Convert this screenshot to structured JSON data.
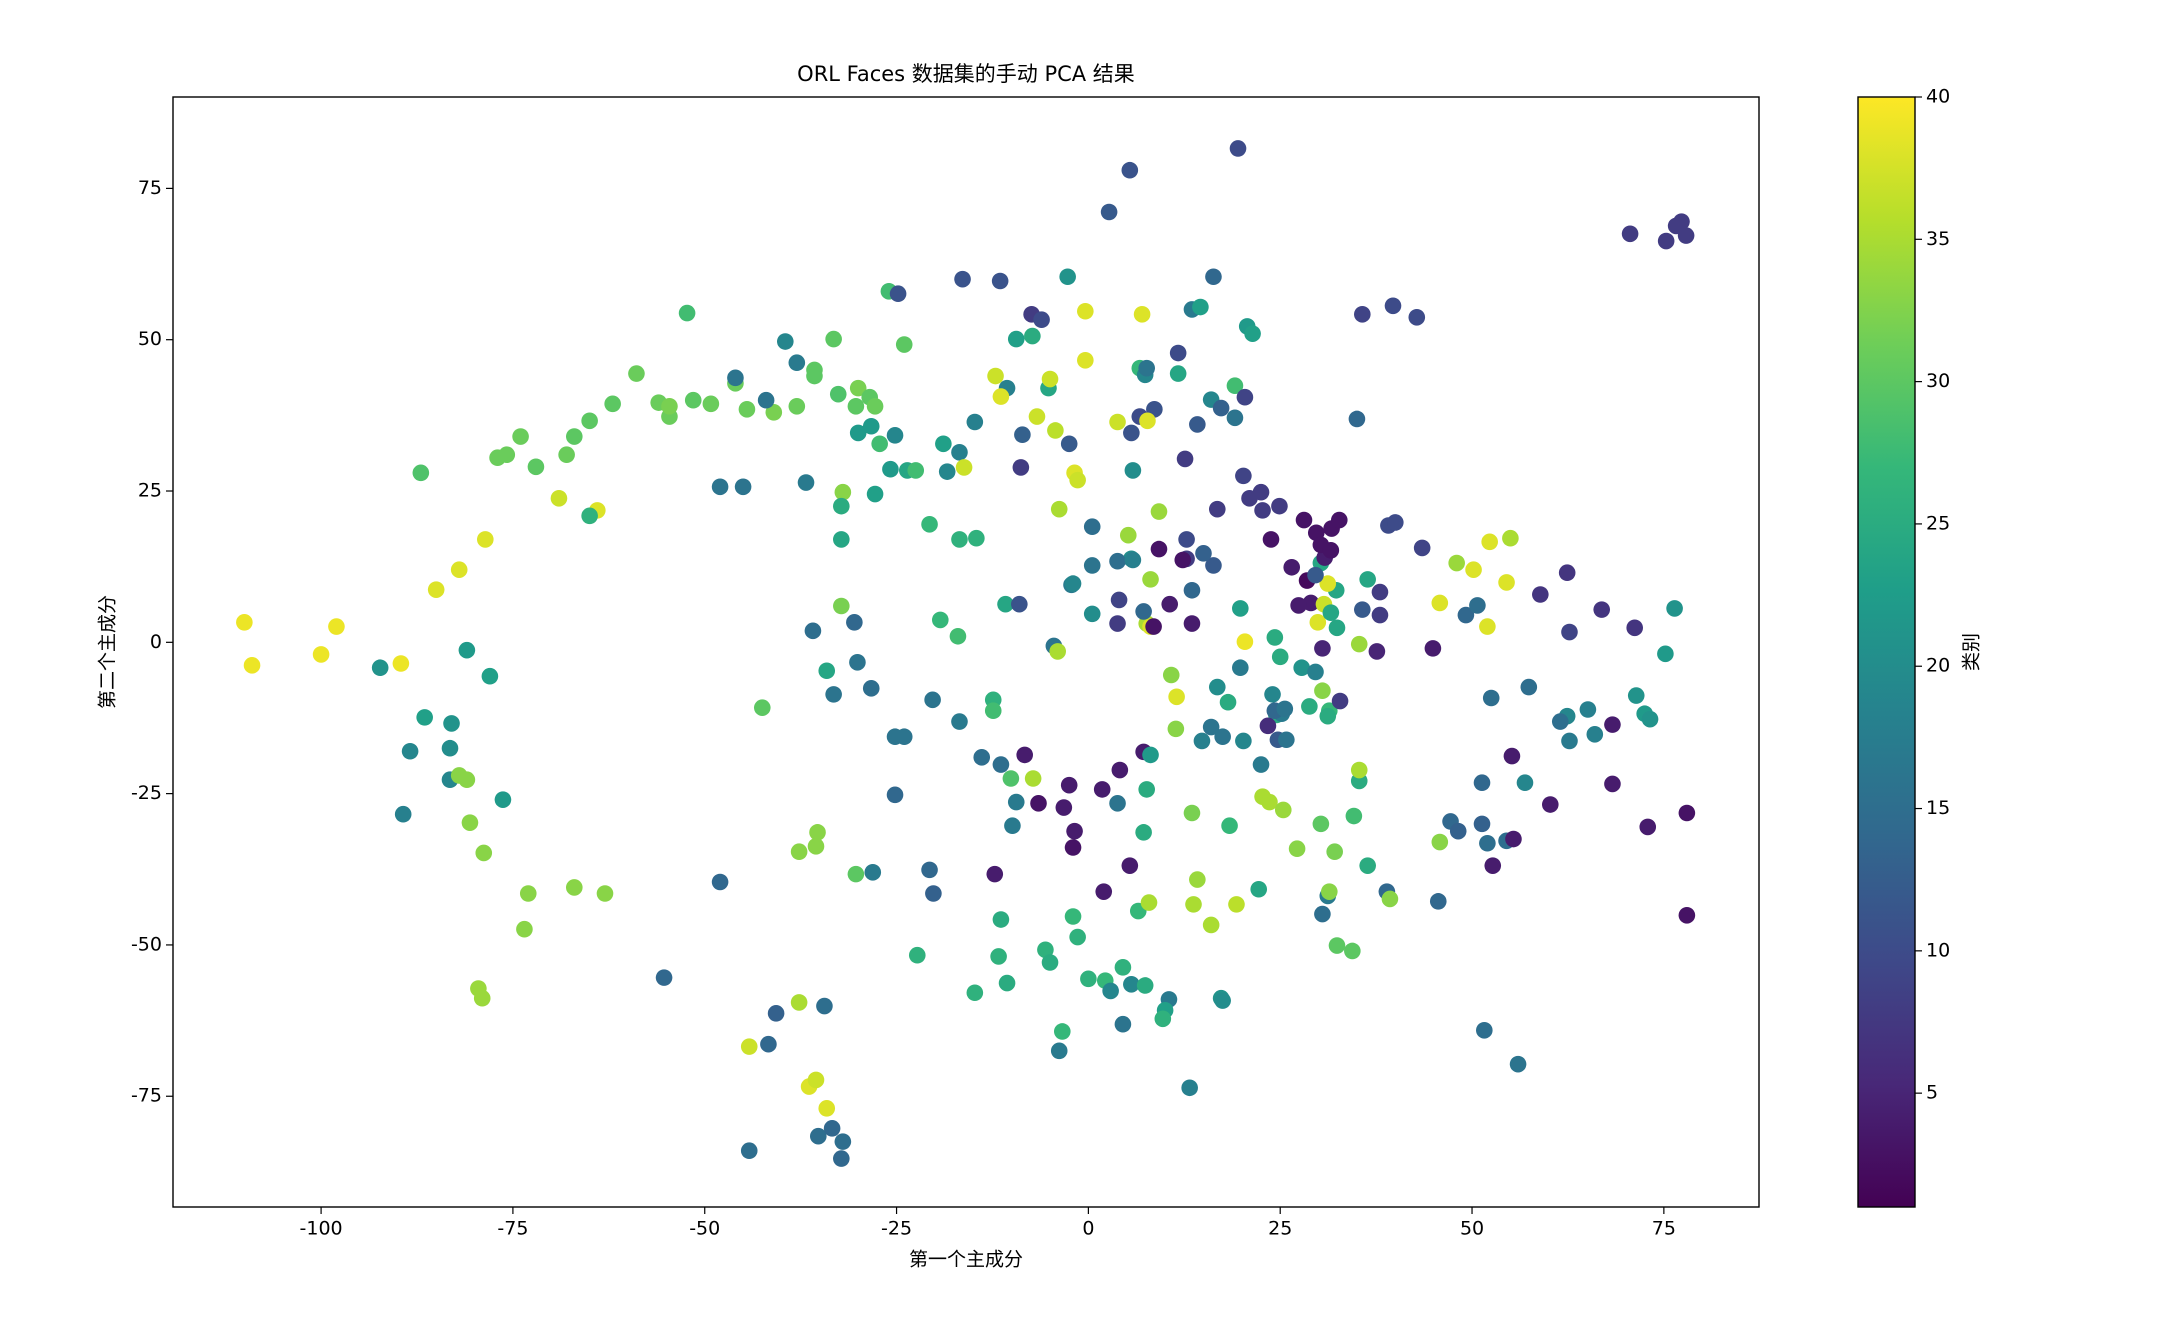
{
  "chart_data": {
    "type": "scatter",
    "title": "ORL Faces 数据集的手动 PCA 结果",
    "x_label": "第一个主成分",
    "y_label": "第二个主成分",
    "colorbar_label": "类别",
    "colormap": "viridis",
    "colorbar_lim": [
      1,
      40
    ],
    "colorbar_ticks": [
      5,
      10,
      15,
      20,
      25,
      30,
      35,
      40
    ],
    "xlim": [
      -119.3,
      87.4
    ],
    "ylim": [
      -93.3,
      90.1
    ],
    "xticks": [
      -100,
      -75,
      -50,
      -25,
      0,
      25,
      50,
      75
    ],
    "yticks": [
      -75,
      -50,
      -25,
      0,
      25,
      50,
      75
    ],
    "grid": false,
    "x": [
      -110,
      -109,
      -98,
      -100,
      -89.6,
      -92.3,
      -87,
      -86.5,
      -88.4,
      -89.3,
      -83,
      -83.2,
      -83.2,
      -81,
      -78,
      -82,
      -81,
      -80.6,
      -78.8,
      -76.3,
      -73,
      -73.5,
      -79.5,
      -79,
      -67,
      -63,
      -85,
      -82,
      -78.6,
      -69,
      -64,
      -65,
      -77,
      -75.8,
      -74,
      -72,
      -68,
      -67,
      -65,
      -62,
      -58.9,
      -56,
      -54.6,
      -54.6,
      -51.5,
      -49.2,
      -52.3,
      -46,
      -46,
      -48,
      -45,
      -44.5,
      -41,
      -42,
      -39.5,
      -38,
      -38,
      -35.7,
      -35.7,
      -33.2,
      -36.8,
      -32.6,
      -30.3,
      -30,
      -28.5,
      -27.8,
      -30,
      -28.3,
      -27.2,
      -26,
      -24.8,
      -25.2,
      -25.8,
      -27.8,
      -24,
      -23.6,
      -22.5,
      -32,
      -32.2,
      -32.2,
      -32.2,
      -30.5,
      -35.9,
      -34.1,
      -33.2,
      -30.1,
      -28.3,
      -42.5,
      -25.2,
      -24,
      -25.2,
      -35.3,
      -35.5,
      -37.7,
      -30.3,
      -28.1,
      -20.7,
      -19.3,
      -17,
      -16.8,
      -14.6,
      -20.3,
      -16.8,
      -20.7,
      -20.2,
      -22.3,
      -14.8,
      -48,
      -55.3,
      -40.7,
      -41.7,
      -44.2,
      -37.7,
      -34.4,
      -36.4,
      -35.5,
      -34.1,
      -35.2,
      -33.4,
      -32,
      -32.2,
      -44.2,
      -18.9,
      -18.4,
      -16.8,
      -16.2,
      -16.4,
      -11.5,
      -12.1,
      -10.6,
      -11.4,
      -9.4,
      -7.3,
      -7.4,
      -6.1,
      -14.8,
      -8.6,
      -8.8,
      -6.7,
      -5.2,
      -5,
      -2.7,
      -0.4,
      -0.4,
      -4.3,
      -2.5,
      -1.8,
      -1.4,
      -10.8,
      -9,
      -12.4,
      -12.4,
      -13.9,
      -11.4,
      -8.3,
      -10.1,
      -7.2,
      -9.4,
      -9.9,
      -6.5,
      -2.5,
      -3.2,
      -1.8,
      -2,
      -4.5,
      -4,
      -3.8,
      -2.2,
      -12.2,
      -11.4,
      -11.7,
      -10.6,
      -5.6,
      -5,
      -2,
      -1.4,
      -3.4,
      -3.8,
      0,
      2.2,
      2.9,
      4.5,
      4.5,
      5.6,
      7.4,
      6.5,
      7.9,
      10.5,
      10,
      9.7,
      13.2,
      17.3,
      17.5,
      2,
      5.4,
      4.1,
      7.2,
      8.1,
      1.8,
      3.8,
      7.6,
      7.2,
      14.2,
      13.7,
      16,
      19.3,
      22.2,
      18.4,
      13.5,
      11.4,
      11.5,
      10.8,
      14.8,
      16.8,
      16,
      17.5,
      18.2,
      19.8,
      20.2,
      22.5,
      20.4,
      19.8,
      24.3,
      25,
      24,
      24.5,
      25.2,
      24.3,
      23.4,
      25.6,
      24.7,
      25.8,
      22.7,
      23.6,
      25.4,
      27.2,
      30.3,
      32.1,
      34.6,
      36.4,
      30.5,
      31.2,
      31.4,
      32.4,
      34.4,
      38.9,
      39.3,
      27.8,
      30.5,
      28.8,
      31.4,
      31.2,
      32.8,
      35.3,
      35.3,
      29.6,
      30.5,
      32.4,
      35.3,
      37.6,
      35.7,
      38,
      38,
      36.4,
      29,
      27.4,
      29.9,
      30.7,
      31.6,
      32.3,
      31.2,
      30.3,
      30.8,
      28.5,
      29.6,
      26.5,
      28.1,
      29.7,
      30.3,
      31.7,
      31.6,
      32.7,
      22.5,
      22.7,
      24.9,
      23.8,
      21,
      20.2,
      16.8,
      16.3,
      15,
      12.8,
      12.8,
      9.2,
      12.3,
      10.6,
      13.5,
      13.5,
      12.6,
      14.2,
      11.7,
      11.7,
      13.5,
      14.6,
      16.3,
      16,
      17.3,
      19.1,
      19.1,
      20.7,
      21.4,
      20.4,
      19.5,
      5.4,
      2.7,
      6.7,
      7.4,
      7.6,
      7,
      8.6,
      6.7,
      7.7,
      3.8,
      5.6,
      5.8,
      9.2,
      5.2,
      8.1,
      7.6,
      8.1,
      7.2,
      5.6,
      4,
      3.8,
      8.5,
      0.5,
      0.5,
      0.5,
      3.8,
      5.8,
      -2,
      35.7,
      39.7,
      42.8,
      35,
      39.1,
      40,
      43.5,
      44.9,
      45.8,
      48,
      50.2,
      52.3,
      55,
      54.5,
      52,
      49.2,
      50.7,
      52.5,
      58.9,
      62.4,
      62.7,
      66.9,
      71.2,
      76.4,
      75.2,
      71.4,
      72.5,
      73.2,
      68.3,
      66,
      65.1,
      62.4,
      61.5,
      62.7,
      57.4,
      55.2,
      56.9,
      51.3,
      54.5,
      55.4,
      52,
      52.7,
      51.3,
      47.2,
      48.2,
      45.8,
      45.6,
      60.2,
      68.3,
      72.9,
      78,
      78,
      51.6,
      56,
      70.6,
      75.3,
      76.6,
      77.3,
      77.9
    ],
    "values": [
      3.3,
      -3.8,
      2.6,
      -2,
      -3.5,
      -4.2,
      28,
      -12.4,
      -18,
      -28.4,
      -13.4,
      -17.5,
      -22.7,
      -1.3,
      -5.6,
      -22,
      -22.7,
      -29.8,
      -34.8,
      -26,
      -41.5,
      -47.4,
      -57.2,
      -58.8,
      -40.5,
      -41.5,
      8.7,
      12,
      17,
      23.8,
      21.8,
      20.9,
      30.5,
      31,
      34,
      29,
      31,
      34,
      36.6,
      39.4,
      44.4,
      39.6,
      37.3,
      39,
      40,
      39.4,
      54.4,
      42.8,
      43.7,
      25.7,
      25.7,
      38.5,
      38,
      40,
      49.7,
      46.2,
      39,
      45,
      44,
      50.1,
      26.4,
      41,
      39,
      42,
      40.5,
      39,
      34.6,
      35.7,
      32.8,
      58,
      57.6,
      34.2,
      28.6,
      24.5,
      49.2,
      28.4,
      28.4,
      24.8,
      22.5,
      17,
      6,
      3.3,
      1.9,
      -4.7,
      -8.6,
      -3.3,
      -7.6,
      -10.8,
      -15.6,
      -15.6,
      -25.2,
      -31.4,
      -33.7,
      -34.6,
      -38.3,
      -38,
      19.5,
      3.7,
      1,
      17,
      17.2,
      -9.5,
      -13.1,
      -37.6,
      -41.5,
      -51.7,
      -57.9,
      -39.6,
      -55.4,
      -61.3,
      -66.4,
      -66.8,
      -59.5,
      -60.1,
      -73.4,
      -72.3,
      -77,
      -81.6,
      -80.3,
      -82.5,
      -85.3,
      -84,
      32.8,
      28.2,
      31.4,
      28.9,
      60,
      59.7,
      44,
      42,
      40.6,
      50.1,
      50.6,
      54.2,
      53.3,
      36.4,
      34.3,
      28.9,
      37.3,
      42,
      43.5,
      60.4,
      54.7,
      46.6,
      35,
      32.8,
      28,
      26.8,
      6.3,
      6.3,
      -9.5,
      -11.3,
      -19,
      -20.2,
      -18.6,
      -22.5,
      -22.5,
      -26.4,
      -30.3,
      -26.6,
      -23.6,
      -27.3,
      -31.2,
      -33.9,
      -0.6,
      -1.5,
      22,
      9.5,
      -38.3,
      -45.8,
      -51.9,
      -56.3,
      -50.8,
      -52.9,
      -45.3,
      -48.7,
      -64.3,
      -67.5,
      -55.6,
      -55.9,
      -57.6,
      -53.7,
      -63.1,
      -56.5,
      -56.7,
      -44.4,
      -43,
      -59,
      -60.8,
      -62.2,
      -73.6,
      -58.8,
      -59.2,
      -41.2,
      -36.9,
      -21.1,
      -18.1,
      -18.6,
      -24.3,
      -26.6,
      -24.3,
      -31.4,
      -39.2,
      -43.3,
      -46.7,
      -43.3,
      -40.8,
      -30.3,
      -28.2,
      -14.3,
      -9,
      -5.4,
      -16.3,
      -7.4,
      -14,
      -15.6,
      -9.9,
      -4.2,
      -16.3,
      -20.2,
      0.1,
      5.6,
      0.8,
      -2.4,
      -8.6,
      -12,
      -11.8,
      -11.3,
      -13.8,
      -11,
      -16.1,
      -16.1,
      -25.5,
      -26.4,
      -27.7,
      -34.1,
      -30,
      -34.6,
      -28.7,
      -36.9,
      -44.9,
      -41.9,
      -41.2,
      -50.1,
      -51,
      -41.2,
      -42.4,
      -4.2,
      -8,
      -10.6,
      -11.3,
      -12.2,
      -9.7,
      -22.9,
      -21.1,
      -4.9,
      -1,
      2.4,
      -0.3,
      -1.5,
      5.4,
      4.5,
      8.3,
      10.4,
      6.5,
      6.1,
      3.3,
      6.3,
      4.9,
      8.6,
      9.7,
      13.1,
      14,
      10.2,
      11.1,
      12.4,
      20.2,
      18.1,
      16.1,
      18.8,
      15.2,
      20.2,
      24.8,
      21.8,
      22.5,
      17,
      23.8,
      27.5,
      22,
      12.7,
      14.7,
      17,
      13.8,
      15.4,
      13.6,
      6.3,
      3.1,
      8.6,
      30.3,
      36,
      47.8,
      44.4,
      55,
      55.4,
      60.4,
      40.1,
      38.7,
      42.4,
      37.1,
      52.2,
      51,
      40.5,
      81.6,
      78,
      71.1,
      45.3,
      44.2,
      45.3,
      54.2,
      38.5,
      37.3,
      36.6,
      36.4,
      34.6,
      28.4,
      21.6,
      17.7,
      10.4,
      3.1,
      2.6,
      5.1,
      13.8,
      7,
      3.1,
      2.6,
      19.1,
      12.7,
      4.7,
      13.4,
      13.6,
      9.7,
      54.2,
      55.6,
      53.7,
      36.9,
      19.3,
      19.8,
      15.6,
      -1,
      6.5,
      13.1,
      12,
      16.6,
      17.2,
      9.9,
      2.6,
      4.5,
      6.1,
      -9.2,
      7.9,
      11.5,
      1.7,
      5.4,
      2.4,
      5.6,
      -1.9,
      -8.8,
      -11.8,
      -12.7,
      -13.6,
      -15.2,
      -11.1,
      -12.2,
      -13.1,
      -16.3,
      -7.4,
      -18.8,
      -23.2,
      -23.2,
      -32.8,
      -32.5,
      -33.2,
      -36.9,
      -30,
      -29.6,
      -31.2,
      -33,
      -42.8,
      -26.8,
      -23.4,
      -30.5,
      -28.2,
      -45.1,
      -64.1,
      -69.7,
      67.5,
      66.3,
      68.8,
      69.5,
      67.2
    ],
    "classes": [
      39,
      39,
      39,
      39,
      39,
      21,
      29,
      23,
      19,
      18,
      21,
      20,
      19,
      22,
      23,
      33,
      33,
      33,
      33,
      22,
      33,
      33,
      34,
      34,
      33,
      33,
      38,
      38,
      38,
      37,
      38,
      26,
      31,
      31,
      31,
      30,
      31,
      30,
      30,
      30,
      31,
      31,
      31,
      32,
      30,
      31,
      28,
      31,
      16,
      16,
      16,
      31,
      32,
      16,
      19,
      17,
      31,
      30,
      30,
      30,
      17,
      29,
      30,
      32,
      30,
      31,
      22,
      22,
      28,
      28,
      11,
      19,
      22,
      23,
      30,
      24,
      28,
      33,
      25,
      24,
      32,
      14,
      15,
      24,
      16,
      16,
      15,
      30,
      16,
      16,
      14,
      33,
      33,
      33,
      30,
      17,
      27,
      27,
      28,
      26,
      26,
      16,
      17,
      14,
      13,
      26,
      26,
      14,
      14,
      13,
      14,
      37,
      35,
      15,
      38,
      37,
      38,
      15,
      14,
      15,
      14,
      15,
      23,
      19,
      18,
      37,
      11,
      11,
      37,
      18,
      38,
      23,
      25,
      8,
      10,
      18,
      13,
      8,
      37,
      24,
      37,
      21,
      38,
      38,
      36,
      12,
      38,
      37,
      24,
      11,
      26,
      28,
      15,
      15,
      4,
      29,
      35,
      17,
      17,
      3,
      4,
      4,
      4,
      3,
      16,
      35,
      35,
      17,
      4,
      25,
      26,
      25,
      26,
      25,
      27,
      26,
      27,
      17,
      26,
      27,
      19,
      26,
      16,
      19,
      25,
      27,
      35,
      17,
      23,
      26,
      18,
      21,
      20,
      4,
      4,
      4,
      4,
      22,
      4,
      16,
      25,
      25,
      34,
      35,
      35,
      36,
      24,
      27,
      32,
      33,
      38,
      33,
      18,
      20,
      16,
      16,
      25,
      17,
      19,
      17,
      39,
      23,
      25,
      25,
      19,
      25,
      17,
      14,
      6,
      16,
      12,
      16,
      35,
      35,
      34,
      33,
      30,
      32,
      28,
      25,
      15,
      17,
      33,
      30,
      30,
      14,
      33,
      21,
      33,
      25,
      27,
      25,
      8,
      25,
      35,
      18,
      5,
      24,
      34,
      5,
      12,
      8,
      8,
      24,
      4,
      4,
      38,
      37,
      24,
      24,
      38,
      24,
      4,
      2,
      12,
      4,
      3,
      3,
      3,
      3,
      3,
      3,
      8,
      8,
      8,
      3,
      8,
      9,
      8,
      12,
      13,
      10,
      8,
      3,
      3,
      4,
      4,
      14,
      8,
      12,
      10,
      24,
      17,
      23,
      14,
      19,
      13,
      28,
      16,
      22,
      23,
      9,
      10,
      11,
      12,
      27,
      19,
      16,
      38,
      11,
      10,
      38,
      37,
      11,
      20,
      34,
      34,
      34,
      35,
      38,
      14,
      20,
      9,
      8,
      3,
      15,
      16,
      20,
      15,
      18,
      19,
      9,
      10,
      10,
      14,
      10,
      10,
      9,
      4,
      38,
      34,
      38,
      38,
      35,
      38,
      38,
      14,
      15,
      15,
      7,
      7,
      9,
      7,
      7,
      21,
      22,
      21,
      22,
      21,
      4,
      18,
      18,
      19,
      15,
      17,
      15,
      4,
      19,
      14,
      15,
      4,
      15,
      4,
      13,
      14,
      13,
      33,
      14,
      4,
      4,
      4,
      3,
      3,
      15,
      16,
      8,
      8,
      8,
      8,
      8
    ]
  }
}
